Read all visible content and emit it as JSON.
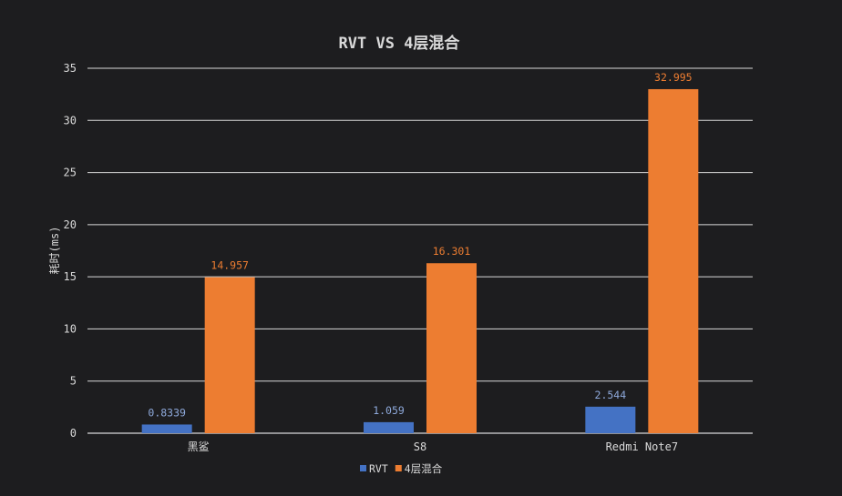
{
  "chart_data": {
    "type": "bar",
    "title": "RVT VS 4层混合",
    "xlabel": "",
    "ylabel": "耗时(ms)",
    "categories": [
      "黑鲨",
      "S8",
      "Redmi  Note7"
    ],
    "series": [
      {
        "name": "RVT",
        "values": [
          0.8339,
          1.059,
          2.544
        ],
        "labels": [
          "0.8339",
          "1.059",
          "2.544"
        ],
        "color": "#4472c4"
      },
      {
        "name": "4层混合",
        "values": [
          14.957,
          16.301,
          32.995
        ],
        "labels": [
          "14.957",
          "16.301",
          "32.995"
        ],
        "color": "#ed7d31"
      }
    ],
    "ylim": [
      0,
      35
    ],
    "yticks": [
      0,
      5,
      10,
      15,
      20,
      25,
      30,
      35
    ],
    "grid": true,
    "legend": "bottom"
  },
  "colors": {
    "background": "#1d1d1f",
    "gridline": "#d9d9d9",
    "axis_text": "#d9d9d9",
    "rvt_label": "#8ea9db",
    "mix_label": "#ed7d31"
  }
}
